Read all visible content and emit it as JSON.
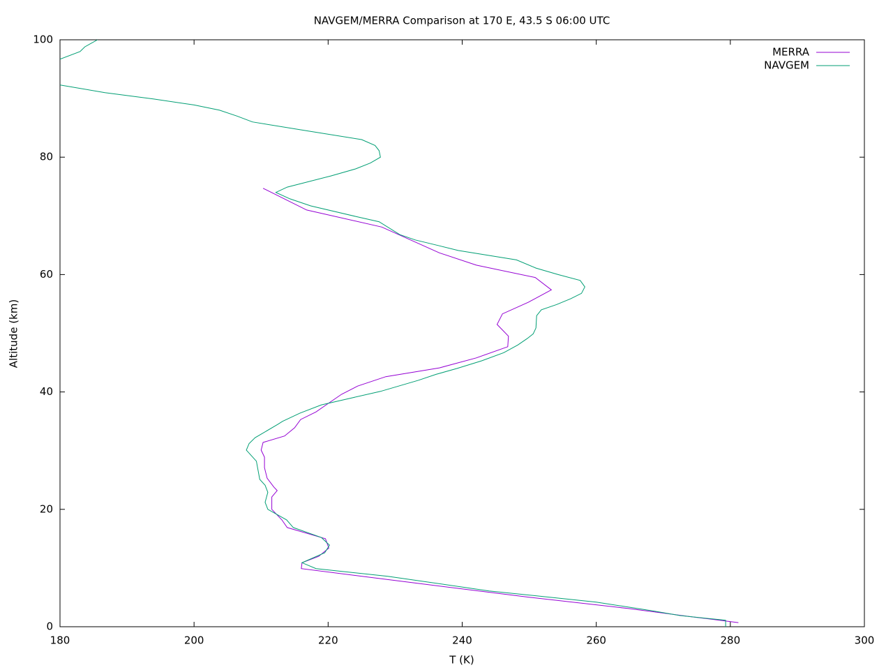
{
  "chart_data": {
    "type": "line",
    "title": "NAVGEM/MERRA Comparison at 170 E, 43.5 S  06:00 UTC",
    "xlabel": "T (K)",
    "ylabel": "Altitude (km)",
    "xlim": [
      180,
      300
    ],
    "ylim": [
      0,
      100
    ],
    "xticks": [
      180,
      200,
      220,
      240,
      260,
      280,
      300
    ],
    "yticks": [
      0,
      20,
      40,
      60,
      80,
      100
    ],
    "legend": "top right",
    "series": [
      {
        "name": "MERRA",
        "color": "#9400d3",
        "x": [
          210.3,
          216.8,
          228,
          236.6,
          242.1,
          250.9,
          253.3,
          249.9,
          246,
          245.2,
          246.9,
          246.8,
          242.1,
          236.6,
          228.6,
          224.4,
          222,
          219.7,
          218.2,
          215.9,
          215,
          213.5,
          210.3,
          210,
          210.5,
          210.5,
          210.9,
          211.9,
          212.4,
          211.6,
          211.6,
          213.1,
          213.9,
          219.6,
          220.1,
          218.6,
          216.1,
          216,
          232.6,
          250.2,
          264.8,
          274.2,
          281.2
        ],
        "y": [
          74.7,
          71,
          68.1,
          63.7,
          61.6,
          59.5,
          57.4,
          55.3,
          53.3,
          51.5,
          49.5,
          47.7,
          45.8,
          44.1,
          42.6,
          41,
          39.6,
          37.8,
          36.6,
          35.3,
          33.9,
          32.5,
          31.4,
          30.1,
          28.9,
          27.1,
          25.3,
          23.8,
          23.2,
          22.1,
          20,
          18.2,
          16.9,
          15,
          13.4,
          12,
          10.9,
          9.9,
          7.5,
          5,
          3.1,
          1.7,
          0.7
        ]
      },
      {
        "name": "NAVGEM",
        "color": "#009e73",
        "x": [
          180,
          183,
          183.7,
          185.6,
          null,
          180,
          186.7,
          194,
          200,
          203.8,
          206.4,
          208.7,
          216.8,
          225,
          227,
          227.6,
          227.8,
          226.3,
          224.1,
          220.4,
          213.9,
          212.2,
          214.3,
          217.4,
          224.1,
          227.6,
          230.7,
          233,
          236.6,
          239.4,
          248.1,
          251,
          254.3,
          257.6,
          258.3,
          257.8,
          256.2,
          254.1,
          251.8,
          251.1,
          251,
          250.6,
          249.7,
          248.3,
          246.2,
          242.9,
          239.2,
          236.1,
          233.5,
          227.8,
          223.6,
          219,
          215.8,
          213.2,
          212.5,
          209.1,
          208.2,
          207.8,
          209.3,
          209.8,
          210.6,
          211,
          210.6,
          211,
          213.8,
          214.8,
          219,
          220.2,
          219.5,
          216.1,
          218.2,
          228.9,
          244,
          260,
          268.4,
          272.5,
          279.3,
          279.3
        ],
        "y": [
          96.7,
          98,
          98.8,
          100,
          null,
          92.3,
          91,
          89.9,
          88.9,
          88,
          87,
          86,
          84.5,
          83,
          82,
          81.1,
          80,
          79,
          78,
          76.8,
          74.9,
          74,
          72.9,
          71.7,
          69.9,
          69,
          66.8,
          65.9,
          64.9,
          64.1,
          62.5,
          61.1,
          60,
          59,
          57.9,
          56.8,
          55.9,
          54.9,
          54,
          53,
          50.9,
          49.9,
          49.1,
          48,
          46.7,
          45.3,
          44,
          43,
          42,
          40.1,
          39,
          37.8,
          36.4,
          35,
          34.5,
          32.2,
          31.2,
          30.1,
          28.2,
          25.1,
          24.1,
          22.9,
          21.2,
          20,
          18.2,
          16.9,
          15.2,
          13.9,
          12.6,
          10.9,
          9.9,
          8.6,
          6.1,
          4.2,
          2.7,
          1.9,
          1.1,
          0
        ]
      }
    ]
  }
}
